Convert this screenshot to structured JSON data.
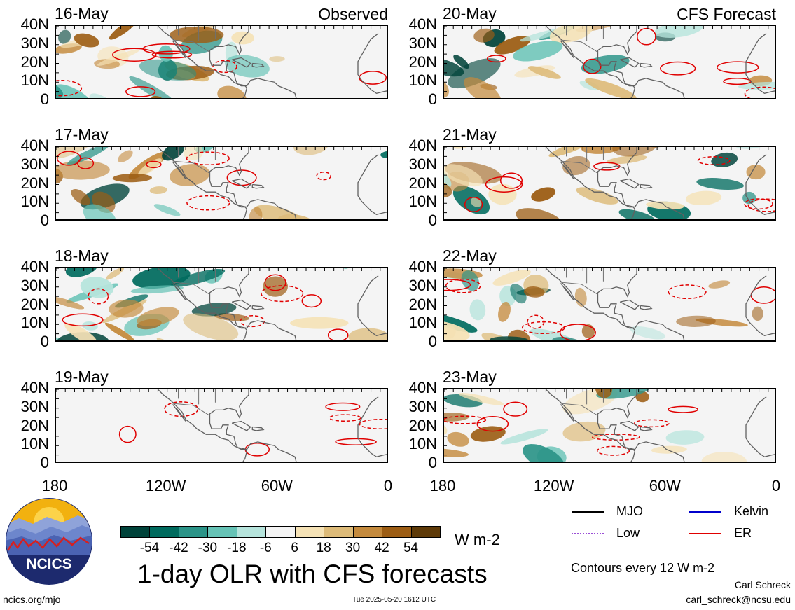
{
  "columns": [
    {
      "tag": "Observed",
      "panels": [
        {
          "date": "16-May"
        },
        {
          "date": "17-May"
        },
        {
          "date": "18-May"
        },
        {
          "date": "19-May"
        }
      ]
    },
    {
      "tag": "CFS Forecast",
      "panels": [
        {
          "date": "20-May"
        },
        {
          "date": "21-May"
        },
        {
          "date": "22-May"
        },
        {
          "date": "23-May"
        }
      ]
    }
  ],
  "lat_labels": [
    "40N",
    "30N",
    "20N",
    "10N",
    "0"
  ],
  "lon_labels": [
    "180",
    "120W",
    "60W",
    "0"
  ],
  "colorbar": {
    "unit": "W m-2",
    "tick_labels": [
      "-54",
      "-42",
      "-30",
      "-18",
      "-6",
      "6",
      "18",
      "30",
      "42",
      "54"
    ],
    "colors": [
      "#00433a",
      "#006b5e",
      "#2b9488",
      "#66c3b6",
      "#b6e4dc",
      "#f4f4f4",
      "#f5e2b6",
      "#ddbb79",
      "#c48a3d",
      "#9c5d14",
      "#5e3a08"
    ]
  },
  "legend": [
    {
      "label": "MJO",
      "color": "#000000"
    },
    {
      "label": "Kelvin",
      "color": "#0000cc"
    },
    {
      "label": "Low",
      "color": "#9b4fd6"
    },
    {
      "label": "ER",
      "color": "#e00000"
    }
  ],
  "title": "1-day OLR with CFS forecasts",
  "contours_note": "Contours every 12 W m-2",
  "footer": {
    "url": "ncics.org/mjo",
    "timestamp": "Tue 2025-05-20 1612 UTC",
    "author": "Carl Schreck",
    "email": "carl_schreck@ncsu.edu"
  },
  "logo": {
    "text": "NCICS"
  }
}
